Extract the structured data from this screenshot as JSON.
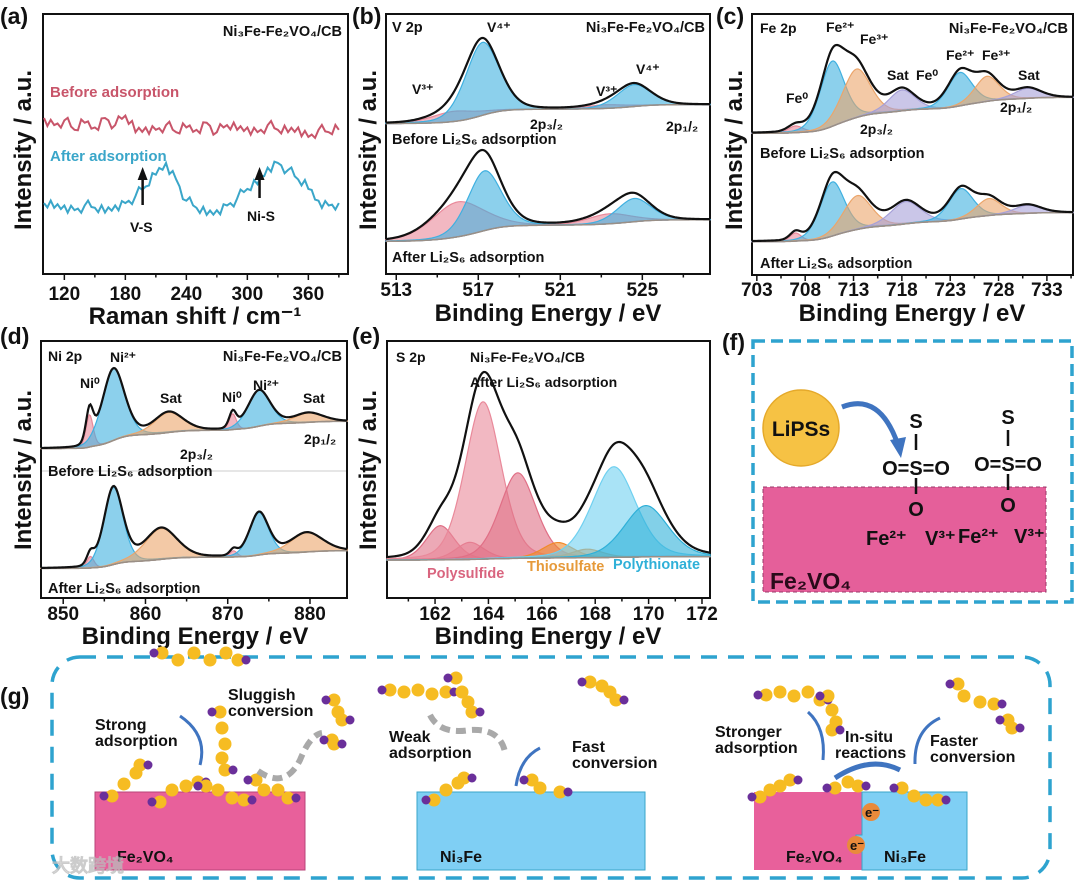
{
  "panel_labels": {
    "a": "(a)",
    "b": "(b)",
    "c": "(c)",
    "d": "(d)",
    "e": "(e)",
    "f": "(f)",
    "g": "(g)"
  },
  "sample": "Ni₃Fe-Fe₂VO₄/CB",
  "chart_data": [
    {
      "id": "a",
      "type": "line",
      "title": "Ni₃Fe-Fe₂VO₄/CB",
      "xlabel": "Raman shift / cm⁻¹",
      "ylabel": "Intensity / a.u.",
      "xlim": [
        99,
        399
      ],
      "ylim": [
        0,
        1.1
      ],
      "xticks": [
        120,
        180,
        240,
        300,
        360
      ],
      "x_start": 100,
      "x_step": 10,
      "series": [
        {
          "name": "Before adsorption",
          "color": "#c8556a",
          "values": [
            0.66,
            0.63,
            0.65,
            0.61,
            0.64,
            0.62,
            0.66,
            0.63,
            0.67,
            0.6,
            0.62,
            0.61,
            0.63,
            0.6,
            0.62,
            0.61,
            0.64,
            0.6,
            0.63,
            0.61,
            0.62,
            0.6,
            0.63,
            0.61,
            0.6,
            0.62,
            0.58,
            0.61,
            0.6,
            0.61
          ]
        },
        {
          "name": "After adsorption",
          "color": "#3aa6c9",
          "values": [
            0.3,
            0.28,
            0.29,
            0.27,
            0.29,
            0.28,
            0.26,
            0.29,
            0.3,
            0.33,
            0.37,
            0.42,
            0.47,
            0.4,
            0.31,
            0.28,
            0.25,
            0.27,
            0.29,
            0.32,
            0.36,
            0.38,
            0.45,
            0.47,
            0.44,
            0.4,
            0.36,
            0.31,
            0.29,
            0.3
          ]
        }
      ],
      "annotations": [
        {
          "text": "V-S",
          "x": 197
        },
        {
          "text": "Ni-S",
          "x": 312
        }
      ]
    },
    {
      "id": "b",
      "type": "area",
      "title": "V 2p",
      "sample": "Ni₃Fe-Fe₂VO₄/CB",
      "xlabel": "Binding Energy / eV",
      "ylabel": "Intensity / a.u.",
      "xlim": [
        512.5,
        528.3
      ],
      "xticks": [
        513,
        517,
        521,
        525
      ],
      "labels": [
        "V⁴⁺",
        "V³⁺",
        "V³⁺",
        "V⁴⁺",
        "2p₃/₂",
        "2p₁/₂"
      ],
      "traces": [
        {
          "name": "Before Li₂S₆ adsorption",
          "bg": [
            0.02,
            0.28
          ],
          "peaks": [
            {
              "label": "V³⁺",
              "c": 515.8,
              "h": 0.14,
              "w": 1.1,
              "color": "#e9899a"
            },
            {
              "label": "V⁴⁺",
              "c": 517.2,
              "h": 1.0,
              "w": 0.85,
              "color": "#3fb0e0"
            },
            {
              "label": "V³⁺",
              "c": 523.2,
              "h": 0.05,
              "w": 1.0,
              "color": "#e9899a"
            },
            {
              "label": "V⁴⁺",
              "c": 524.6,
              "h": 0.3,
              "w": 0.85,
              "color": "#3fb0e0"
            }
          ]
        },
        {
          "name": "After Li₂S₆ adsorption",
          "bg": [
            0.02,
            0.28
          ],
          "peaks": [
            {
              "label": "V³⁺",
              "c": 516.0,
              "h": 0.42,
              "w": 1.3,
              "color": "#e9899a"
            },
            {
              "label": "V⁴⁺",
              "c": 517.3,
              "h": 0.72,
              "w": 0.85,
              "color": "#3fb0e0"
            },
            {
              "label": "V³⁺",
              "c": 523.4,
              "h": 0.12,
              "w": 1.1,
              "color": "#e9899a"
            },
            {
              "label": "V⁴⁺",
              "c": 524.6,
              "h": 0.28,
              "w": 0.85,
              "color": "#3fb0e0"
            }
          ]
        }
      ]
    },
    {
      "id": "c",
      "type": "area",
      "title": "Fe 2p",
      "sample": "Ni₃Fe-Fe₂VO₄/CB",
      "xlabel": "Binding Energy / eV",
      "ylabel": "Intensity / a.u.",
      "xlim": [
        702.5,
        735.7
      ],
      "xticks": [
        703,
        708,
        713,
        718,
        723,
        728,
        733
      ],
      "labels": [
        "Fe²⁺",
        "Fe³⁺",
        "Fe⁰",
        "Sat",
        "Fe⁰",
        "Fe²⁺",
        "Fe³⁺",
        "Sat",
        "2p₃/₂",
        "2p₁/₂"
      ],
      "traces": [
        {
          "name": "Before Li₂S₆ adsorption",
          "bg": [
            0.02,
            0.45
          ],
          "peaks": [
            {
              "label": "Fe⁰",
              "c": 707.0,
              "h": 0.08,
              "w": 0.8,
              "color": "#e9899a"
            },
            {
              "label": "Fe²⁺",
              "c": 710.8,
              "h": 0.78,
              "w": 1.3,
              "color": "#3fb0e0"
            },
            {
              "label": "Fe³⁺",
              "c": 713.3,
              "h": 0.58,
              "w": 1.5,
              "color": "#eba56b"
            },
            {
              "label": "Sat",
              "c": 718.0,
              "h": 0.25,
              "w": 1.4,
              "color": "#a6a0d8"
            },
            {
              "label": "Fe²⁺",
              "c": 724.0,
              "h": 0.4,
              "w": 1.3,
              "color": "#3fb0e0"
            },
            {
              "label": "Fe³⁺",
              "c": 726.8,
              "h": 0.3,
              "w": 1.3,
              "color": "#eba56b"
            },
            {
              "label": "Sat",
              "c": 731.0,
              "h": 0.12,
              "w": 1.4,
              "color": "#a6a0d8"
            }
          ]
        },
        {
          "name": "After Li₂S₆ adsorption",
          "bg": [
            0.02,
            0.45
          ],
          "peaks": [
            {
              "label": "Fe⁰",
              "c": 707.0,
              "h": 0.12,
              "w": 0.6,
              "color": "#e9899a"
            },
            {
              "label": "Fe²⁺",
              "c": 710.8,
              "h": 0.8,
              "w": 1.3,
              "color": "#3fb0e0"
            },
            {
              "label": "Fe³⁺",
              "c": 713.4,
              "h": 0.5,
              "w": 1.5,
              "color": "#eba56b"
            },
            {
              "label": "Sat",
              "c": 718.4,
              "h": 0.33,
              "w": 1.6,
              "color": "#a6a0d8"
            },
            {
              "label": "Fe²⁺",
              "c": 724.1,
              "h": 0.45,
              "w": 1.3,
              "color": "#3fb0e0"
            },
            {
              "label": "Fe³⁺",
              "c": 727.0,
              "h": 0.25,
              "w": 1.3,
              "color": "#eba56b"
            },
            {
              "label": "Sat",
              "c": 731.0,
              "h": 0.12,
              "w": 1.4,
              "color": "#a6a0d8"
            }
          ]
        }
      ]
    },
    {
      "id": "d",
      "type": "area",
      "title": "Ni 2p",
      "sample": "Ni₃Fe-Fe₂VO₄/CB",
      "xlabel": "Binding Energy / eV",
      "ylabel": "Intensity / a.u.",
      "xlim": [
        847.3,
        884.5
      ],
      "xticks": [
        850,
        860,
        870,
        880
      ],
      "labels": [
        "Ni²⁺",
        "Ni⁰",
        "Sat",
        "Ni⁰",
        "Ni²⁺",
        "Sat",
        "2p₃/₂",
        "2p₁/₂"
      ],
      "traces": [
        {
          "name": "Before Li₂S₆ adsorption",
          "bg": [
            0.02,
            0.4
          ],
          "peaks": [
            {
              "label": "Ni⁰",
              "c": 853.2,
              "h": 0.45,
              "w": 0.45,
              "color": "#e9899a"
            },
            {
              "label": "Ni²⁺",
              "c": 856.1,
              "h": 1.0,
              "w": 1.4,
              "color": "#3fb0e0"
            },
            {
              "label": "Sat",
              "c": 862.8,
              "h": 0.28,
              "w": 1.8,
              "color": "#eba56b"
            },
            {
              "label": "Ni⁰",
              "c": 870.6,
              "h": 0.22,
              "w": 0.45,
              "color": "#e9899a"
            },
            {
              "label": "Ni²⁺",
              "c": 873.8,
              "h": 0.5,
              "w": 1.4,
              "color": "#3fb0e0"
            },
            {
              "label": "Sat",
              "c": 879.8,
              "h": 0.13,
              "w": 1.8,
              "color": "#eba56b"
            }
          ]
        },
        {
          "name": "After Li₂S₆ adsorption",
          "bg": [
            0.02,
            0.25
          ],
          "peaks": [
            {
              "label": "Ni⁰",
              "c": 853.3,
              "h": 0.15,
              "w": 0.45,
              "color": "#e9899a"
            },
            {
              "label": "Ni²⁺",
              "c": 856.1,
              "h": 1.0,
              "w": 1.2,
              "color": "#3fb0e0"
            },
            {
              "label": "Sat",
              "c": 861.9,
              "h": 0.4,
              "w": 2.0,
              "color": "#eba56b"
            },
            {
              "label": "Ni⁰",
              "c": 870.7,
              "h": 0.08,
              "w": 0.45,
              "color": "#e9899a"
            },
            {
              "label": "Ni²⁺",
              "c": 873.8,
              "h": 0.55,
              "w": 1.2,
              "color": "#3fb0e0"
            },
            {
              "label": "Sat",
              "c": 879.6,
              "h": 0.25,
              "w": 2.0,
              "color": "#eba56b"
            }
          ]
        }
      ]
    },
    {
      "id": "e",
      "type": "area",
      "title": "S 2p",
      "sample": "Ni₃Fe-Fe₂VO₄/CB",
      "subtitle": "After Li₂S₆ adsorption",
      "xlabel": "Binding Energy / eV",
      "ylabel": "Intensity / a.u.",
      "xlim": [
        160.2,
        172.3
      ],
      "xticks": [
        162,
        164,
        166,
        168,
        170,
        172
      ],
      "legend": [
        {
          "text": "Polysulfide",
          "color": "#d9657f"
        },
        {
          "text": "Thiosulfate",
          "color": "#e69a3a"
        },
        {
          "text": "Polythionate",
          "color": "#2fb0d8"
        }
      ],
      "traces": [
        {
          "name": "After Li₂S₆ adsorption",
          "bg": [
            0.0,
            0.02
          ],
          "peaks": [
            {
              "label": "Polysulfide",
              "c": 162.2,
              "h": 0.2,
              "w": 0.55,
              "color": "#e06f86"
            },
            {
              "label": "Polysulfide",
              "c": 163.3,
              "h": 0.1,
              "w": 0.55,
              "color": "#e06f86"
            },
            {
              "label": "Polysulfide",
              "c": 163.8,
              "h": 0.92,
              "w": 0.7,
              "color": "#e9899a"
            },
            {
              "label": "Polysulfide",
              "c": 165.1,
              "h": 0.5,
              "w": 0.7,
              "color": "#e06f86"
            },
            {
              "label": "Thiosulfate",
              "c": 166.6,
              "h": 0.09,
              "w": 0.6,
              "color": "#f08a2a"
            },
            {
              "label": "Thiosulfate",
              "c": 167.7,
              "h": 0.05,
              "w": 0.6,
              "color": "#f08a2a"
            },
            {
              "label": "Polythionate",
              "c": 168.7,
              "h": 0.53,
              "w": 0.85,
              "color": "#6fd0f0"
            },
            {
              "label": "Polythionate",
              "c": 169.9,
              "h": 0.3,
              "w": 0.85,
              "color": "#2fb0d8"
            }
          ]
        }
      ]
    }
  ],
  "panel_f": {
    "lipss": "LiPSs",
    "s_top": "S",
    "sulfonyl": "O=S=O",
    "o_bottom": "O",
    "ions": [
      "Fe²⁺",
      "V³⁺",
      "Fe²⁺",
      "V³⁺"
    ],
    "substrate": "Fe₂VO₄"
  },
  "panel_g": {
    "strong": [
      "Strong",
      "adsorption"
    ],
    "sluggish": [
      "Sluggish",
      "conversion"
    ],
    "weak": [
      "Weak",
      "adsorption"
    ],
    "fast": [
      "Fast",
      "conversion"
    ],
    "stronger": [
      "Stronger",
      "adsorption"
    ],
    "insitu": [
      "In-situ",
      "reactions"
    ],
    "faster": [
      "Faster",
      "conversion"
    ],
    "fe2vo4": "Fe₂VO₄",
    "ni3fe": "Ni₃Fe",
    "electron": "e⁻"
  },
  "watermark": "大数跨境"
}
